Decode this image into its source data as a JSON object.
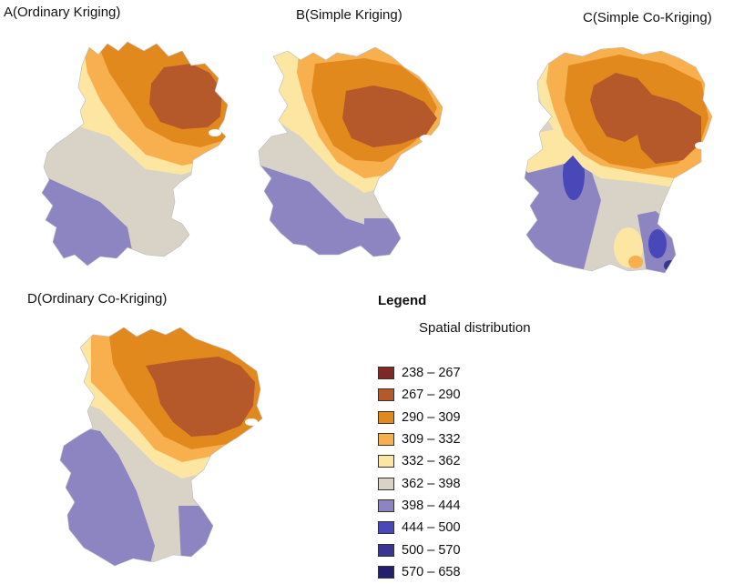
{
  "panels": [
    {
      "id": "A",
      "title": "A(Ordinary Kriging)"
    },
    {
      "id": "B",
      "title": "B(Simple Kriging)"
    },
    {
      "id": "C",
      "title": "C(Simple Co-Kriging)"
    },
    {
      "id": "D",
      "title": "D(Ordinary Co-Kriging)"
    }
  ],
  "legend": {
    "title": "Legend",
    "subtitle": "Spatial distribution",
    "classes": [
      {
        "label": "238 – 267",
        "color": "#7d2a24"
      },
      {
        "label": "267 – 290",
        "color": "#b5582a"
      },
      {
        "label": "290 – 309",
        "color": "#e2891d"
      },
      {
        "label": "309 – 332",
        "color": "#f7b04d"
      },
      {
        "label": "332 – 362",
        "color": "#fde6a2"
      },
      {
        "label": "362 – 398",
        "color": "#d8d3c6"
      },
      {
        "label": "398 – 444",
        "color": "#8c85c2"
      },
      {
        "label": "444 – 500",
        "color": "#4a47b8"
      },
      {
        "label": "500 – 570",
        "color": "#3a3594"
      },
      {
        "label": "570 – 658",
        "color": "#231e6e"
      }
    ]
  }
}
